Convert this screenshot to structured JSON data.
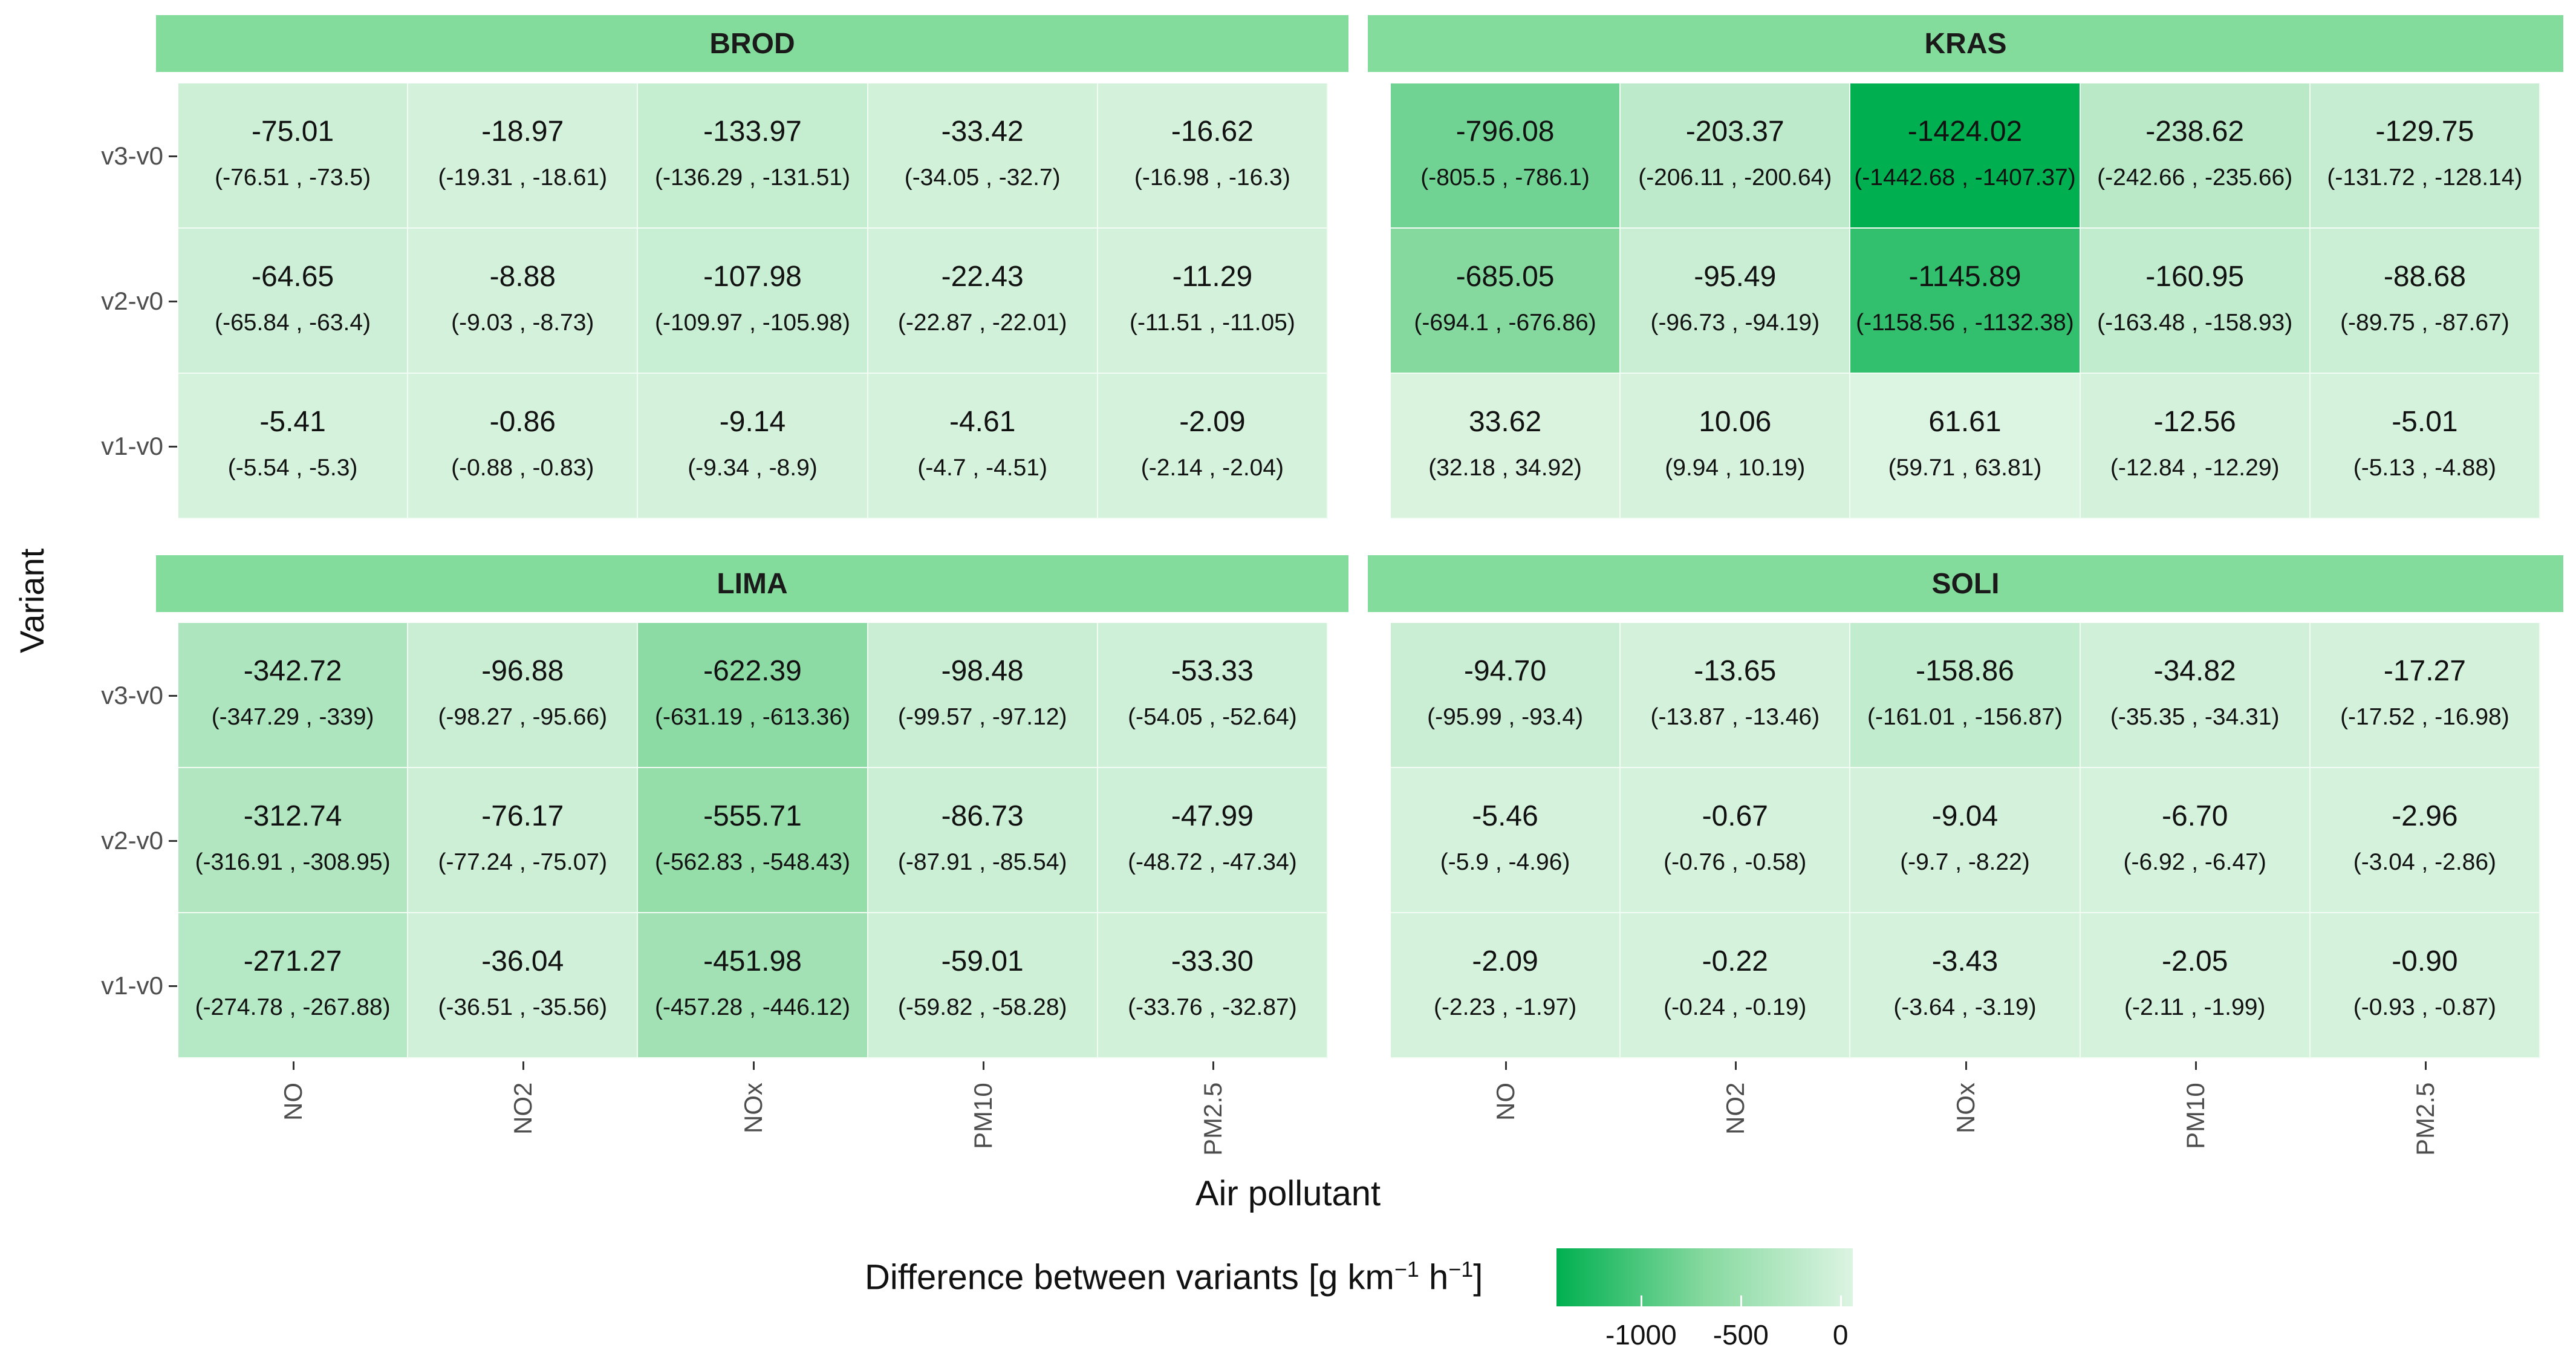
{
  "chart_data": {
    "type": "heatmap",
    "title": "",
    "xlabel": "Air pollutant",
    "ylabel": "Variant",
    "x_categories": [
      "NO",
      "NO2",
      "NOx",
      "PM10",
      "PM2.5"
    ],
    "y_categories": [
      "v3-v0",
      "v2-v0",
      "v1-v0"
    ],
    "facets": [
      {
        "name": "BROD",
        "values": [
          [
            "-75.01",
            "-18.97",
            "-133.97",
            "-33.42",
            "-16.62"
          ],
          [
            "-64.65",
            "-8.88",
            "-107.98",
            "-22.43",
            "-11.29"
          ],
          [
            "-5.41",
            "-0.86",
            "-9.14",
            "-4.61",
            "-2.09"
          ]
        ],
        "intervals": [
          [
            "(-76.51 , -73.5)",
            "(-19.31 , -18.61)",
            "(-136.29 , -131.51)",
            "(-34.05 , -32.7)",
            "(-16.98 , -16.3)"
          ],
          [
            "(-65.84 , -63.4)",
            "(-9.03 , -8.73)",
            "(-109.97 , -105.98)",
            "(-22.87 , -22.01)",
            "(-11.51 , -11.05)"
          ],
          [
            "(-5.54 , -5.3)",
            "(-0.88 , -0.83)",
            "(-9.34 , -8.9)",
            "(-4.7 , -4.51)",
            "(-2.14 , -2.04)"
          ]
        ]
      },
      {
        "name": "KRAS",
        "values": [
          [
            "-796.08",
            "-203.37",
            "-1424.02",
            "-238.62",
            "-129.75"
          ],
          [
            "-685.05",
            "-95.49",
            "-1145.89",
            "-160.95",
            "-88.68"
          ],
          [
            "33.62",
            "10.06",
            "61.61",
            "-12.56",
            "-5.01"
          ]
        ],
        "intervals": [
          [
            "(-805.5 , -786.1)",
            "(-206.11 , -200.64)",
            "(-1442.68 , -1407.37)",
            "(-242.66 , -235.66)",
            "(-131.72 , -128.14)"
          ],
          [
            "(-694.1 , -676.86)",
            "(-96.73 , -94.19)",
            "(-1158.56 , -1132.38)",
            "(-163.48 , -158.93)",
            "(-89.75 , -87.67)"
          ],
          [
            "(32.18 , 34.92)",
            "(9.94 , 10.19)",
            "(59.71 , 63.81)",
            "(-12.84 , -12.29)",
            "(-5.13 , -4.88)"
          ]
        ]
      },
      {
        "name": "LIMA",
        "values": [
          [
            "-342.72",
            "-96.88",
            "-622.39",
            "-98.48",
            "-53.33"
          ],
          [
            "-312.74",
            "-76.17",
            "-555.71",
            "-86.73",
            "-47.99"
          ],
          [
            "-271.27",
            "-36.04",
            "-451.98",
            "-59.01",
            "-33.30"
          ]
        ],
        "intervals": [
          [
            "(-347.29 , -339)",
            "(-98.27 , -95.66)",
            "(-631.19 , -613.36)",
            "(-99.57 , -97.12)",
            "(-54.05 , -52.64)"
          ],
          [
            "(-316.91 , -308.95)",
            "(-77.24 , -75.07)",
            "(-562.83 , -548.43)",
            "(-87.91 , -85.54)",
            "(-48.72 , -47.34)"
          ],
          [
            "(-274.78 , -267.88)",
            "(-36.51 , -35.56)",
            "(-457.28 , -446.12)",
            "(-59.82 , -58.28)",
            "(-33.76 , -32.87)"
          ]
        ]
      },
      {
        "name": "SOLI",
        "values": [
          [
            "-94.70",
            "-13.65",
            "-158.86",
            "-34.82",
            "-17.27"
          ],
          [
            "-5.46",
            "-0.67",
            "-9.04",
            "-6.70",
            "-2.96"
          ],
          [
            "-2.09",
            "-0.22",
            "-3.43",
            "-2.05",
            "-0.90"
          ]
        ],
        "intervals": [
          [
            "(-95.99 , -93.4)",
            "(-13.87 , -13.46)",
            "(-161.01 , -156.87)",
            "(-35.35 , -34.31)",
            "(-17.52 , -16.98)"
          ],
          [
            "(-5.9 , -4.96)",
            "(-0.76 , -0.58)",
            "(-9.7 , -8.22)",
            "(-6.92 , -6.47)",
            "(-3.04 , -2.86)"
          ],
          [
            "(-2.23 , -1.97)",
            "(-0.24 , -0.19)",
            "(-3.64 , -3.19)",
            "(-2.11 , -1.99)",
            "(-0.93 , -0.87)"
          ]
        ]
      }
    ],
    "colorscale": {
      "title_prefix": "Difference between variants [g km",
      "title_sup1": "−1",
      "title_mid": " h",
      "title_sup2": "−1",
      "title_suffix": "]",
      "low_color": "#00b050",
      "mid_color": "#86d99f",
      "high_color": "#dcf4e2",
      "range": [
        -1424.02,
        61.61
      ],
      "ticks": [
        -1000,
        -500,
        0
      ],
      "tick_labels": [
        "-1000",
        "-500",
        "0"
      ]
    },
    "strip_color": "#84dc9c",
    "grid": false,
    "legend_position": "bottom"
  }
}
